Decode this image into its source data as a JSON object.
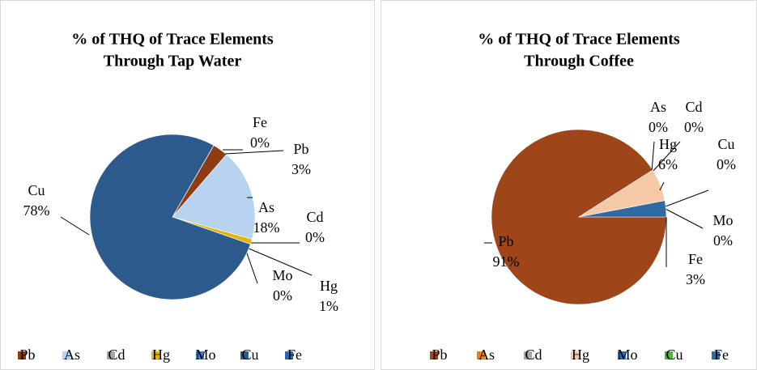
{
  "chart_data": [
    {
      "type": "pie",
      "title": "% of THQ of Trace Elements",
      "subtitle": "Through Tap Water",
      "categories": [
        "Pb",
        "As",
        "Cd",
        "Hg",
        "Mo",
        "Cu",
        "Fe"
      ],
      "values": [
        3,
        18,
        0,
        1,
        0,
        78,
        0
      ],
      "value_labels": [
        "3%",
        "18%",
        "0%",
        "1%",
        "0%",
        "78%",
        "0%"
      ],
      "colors": [
        "#8c3b12",
        "#b7d3f0",
        "#a6a6a6",
        "#e8b400",
        "#3d7ad0",
        "#2c5a8c",
        "#2f66a8"
      ],
      "legend": "bottom"
    },
    {
      "type": "pie",
      "title": "% of THQ of Trace Elements",
      "subtitle": "Through Coffee",
      "categories": [
        "Pb",
        "As",
        "Cd",
        "Hg",
        "Mo",
        "Cu",
        "Fe"
      ],
      "values": [
        91,
        0,
        0,
        6,
        0,
        0,
        3
      ],
      "value_labels": [
        "91%",
        "0%",
        "0%",
        "6%",
        "0%",
        "0%",
        "3%"
      ],
      "colors": [
        "#9e4519",
        "#e57e1c",
        "#a6a6a6",
        "#f5c9a5",
        "#2f6fc0",
        "#53b04a",
        "#2e6aa5"
      ],
      "legend": "bottom"
    }
  ]
}
